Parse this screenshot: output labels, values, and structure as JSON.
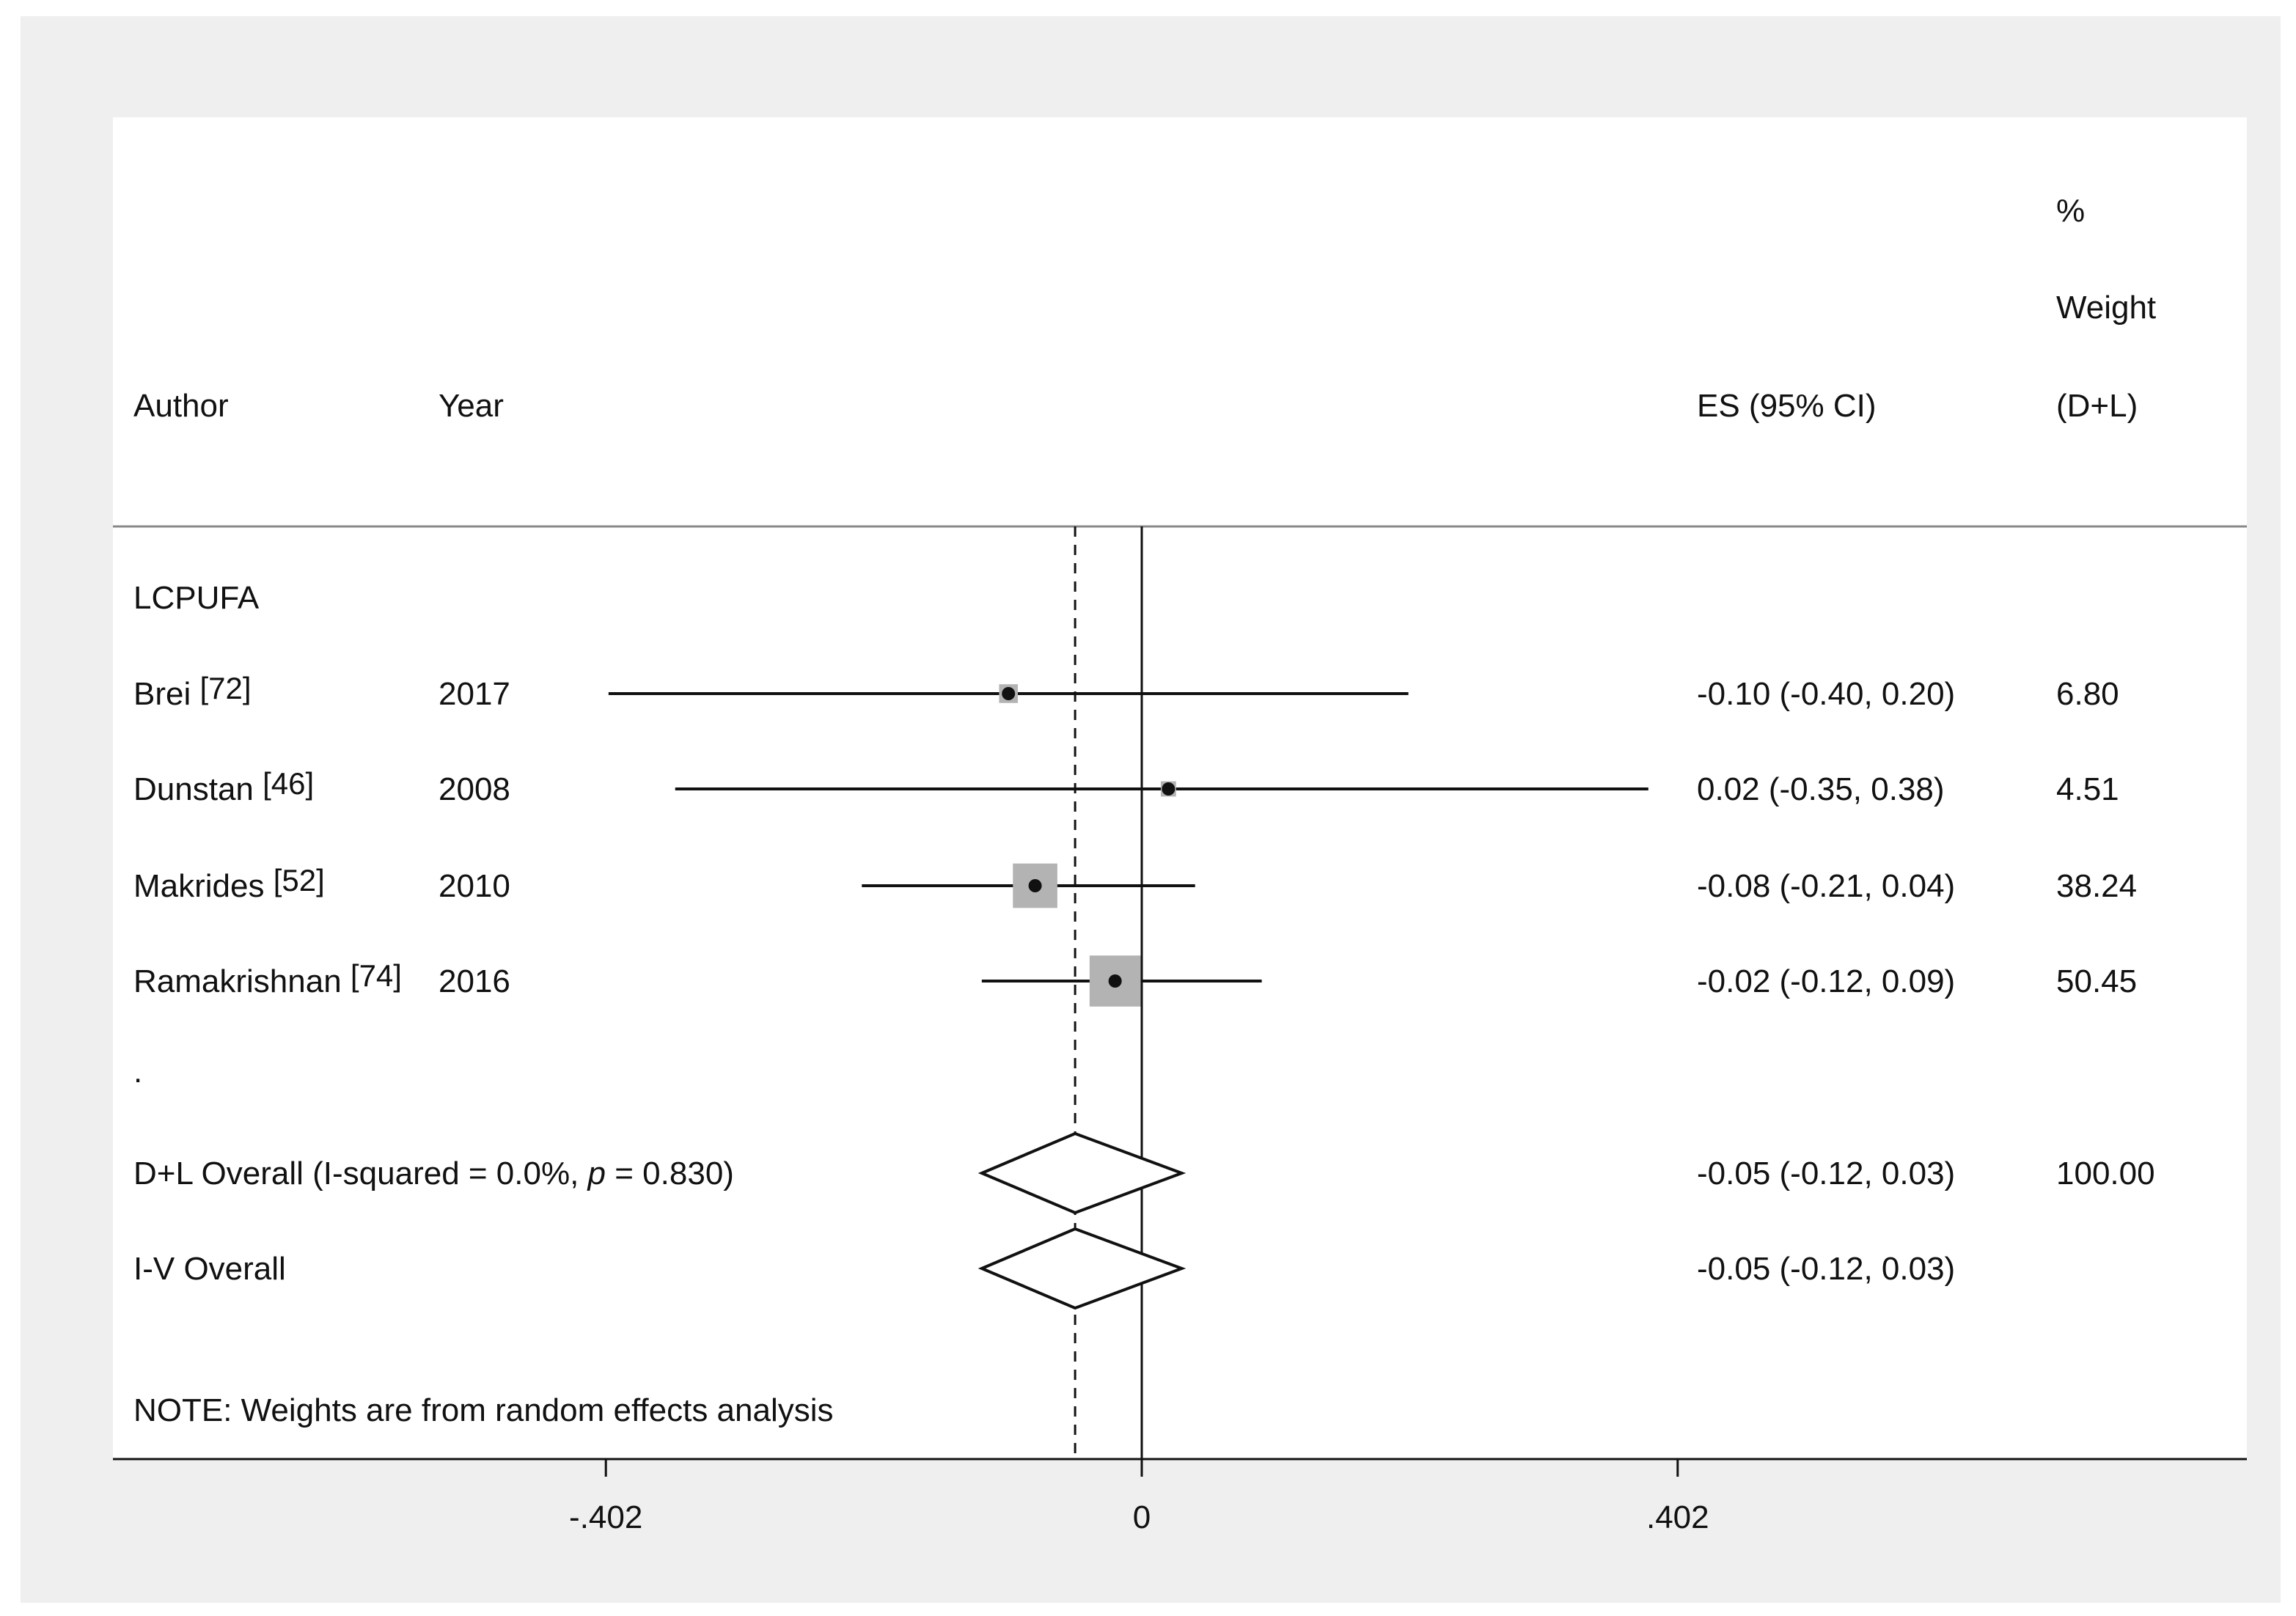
{
  "header": {
    "author": "Author",
    "year": "Year",
    "es": "ES (95% CI)",
    "weight_line1": "%",
    "weight_line2": "Weight",
    "weight_line3": "(D+L)"
  },
  "group_label": "LCPUFA",
  "spacer_dot": ".",
  "note": "NOTE: Weights are from random effects analysis",
  "colors": {
    "line": "#111111",
    "box": "#b3b3b3",
    "frame": "#efefef"
  },
  "chart_data": {
    "type": "forest",
    "x_ticks": [
      {
        "value": -0.402,
        "label": "-.402"
      },
      {
        "value": 0,
        "label": "0"
      },
      {
        "value": 0.402,
        "label": ".402"
      }
    ],
    "null_line": 0,
    "studies": [
      {
        "author": "Brei",
        "ref": "[72]",
        "year": "2017",
        "es": -0.1,
        "lo": -0.4,
        "hi": 0.2,
        "es_text": "-0.10 (-0.40, 0.20)",
        "weight": 6.8,
        "weight_text": "6.80"
      },
      {
        "author": "Dunstan",
        "ref": "[46]",
        "year": "2008",
        "es": 0.02,
        "lo": -0.35,
        "hi": 0.38,
        "es_text": "0.02 (-0.35, 0.38)",
        "weight": 4.51,
        "weight_text": "4.51"
      },
      {
        "author": "Makrides",
        "ref": "[52]",
        "year": "2010",
        "es": -0.08,
        "lo": -0.21,
        "hi": 0.04,
        "es_text": "-0.08 (-0.21, 0.04)",
        "weight": 38.24,
        "weight_text": "38.24"
      },
      {
        "author": "Ramakrishnan",
        "ref": "[74]",
        "year": "2016",
        "es": -0.02,
        "lo": -0.12,
        "hi": 0.09,
        "es_text": "-0.02 (-0.12, 0.09)",
        "weight": 50.45,
        "weight_text": "50.45"
      }
    ],
    "overall": [
      {
        "label": "D+L Overall  (I-squared = 0.0%, ",
        "p_symbol": "p",
        "p_rest": " = 0.830)",
        "es": -0.05,
        "lo": -0.12,
        "hi": 0.03,
        "es_text": "-0.05 (-0.12, 0.03)",
        "weight_text": "100.00"
      },
      {
        "label": "I-V Overall",
        "p_symbol": "",
        "p_rest": "",
        "es": -0.05,
        "lo": -0.12,
        "hi": 0.03,
        "es_text": "-0.05 (-0.12, 0.03)",
        "weight_text": ""
      }
    ]
  }
}
